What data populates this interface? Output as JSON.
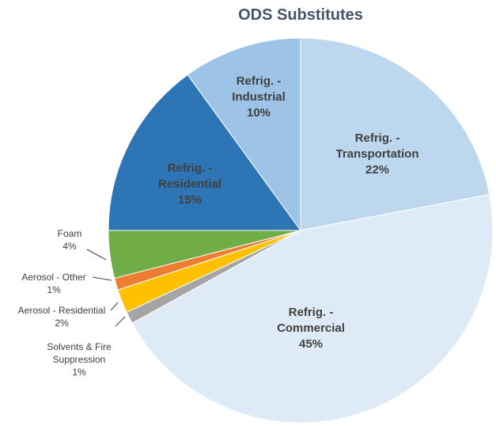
{
  "chart_data": {
    "type": "pie",
    "title": "ODS Substitutes",
    "categories": [
      "Refrig. - Transportation",
      "Refrig. - Commercial",
      "Solvents & Fire Suppression",
      "Aerosol - Residential",
      "Aerosol - Other",
      "Foam",
      "Refrig. - Residential",
      "Refrig. - Industrial"
    ],
    "values": [
      22,
      45,
      1,
      2,
      1,
      4,
      15,
      10
    ],
    "value_labels": [
      "22%",
      "45%",
      "1%",
      "2%",
      "1%",
      "4%",
      "15%",
      "10%"
    ],
    "colors": [
      "#bdd7ee",
      "#deebf7",
      "#a5a5a5",
      "#ffc000",
      "#ed7d31",
      "#70ad47",
      "#2e75b6",
      "#9dc3e6"
    ]
  }
}
